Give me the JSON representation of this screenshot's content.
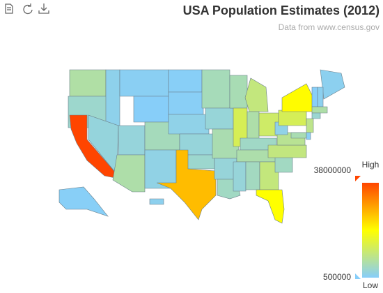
{
  "header": {
    "title": "USA Population Estimates (2012)",
    "subtitle": "Data from www.census.gov"
  },
  "visual_map": {
    "max": 38000000,
    "min": 500000,
    "high_label": "High",
    "low_label": "Low",
    "colors": [
      "lightskyblue",
      "yellow",
      "orangered"
    ]
  },
  "states": [
    6900000,
    3900000,
    38000000,
    1600000,
    2750000,
    1000000,
    576000,
    2850000,
    6550000,
    5200000,
    2080000,
    700000,
    833000,
    1850000,
    2885000,
    3815000,
    26000000,
    5380000,
    3075000,
    6020000,
    2950000,
    4600000,
    5725000,
    12870000,
    9880000,
    6540000,
    11540000,
    4380000,
    6450000,
    2985000,
    4820000,
    9920000,
    19300000,
    4720000,
    9750000,
    8190000,
    1855000,
    12760000,
    19570000,
    1330000,
    626000,
    1320000,
    6650000,
    3590000,
    8860000,
    5880000,
    917000,
    731000,
    1390000
  ]
}
